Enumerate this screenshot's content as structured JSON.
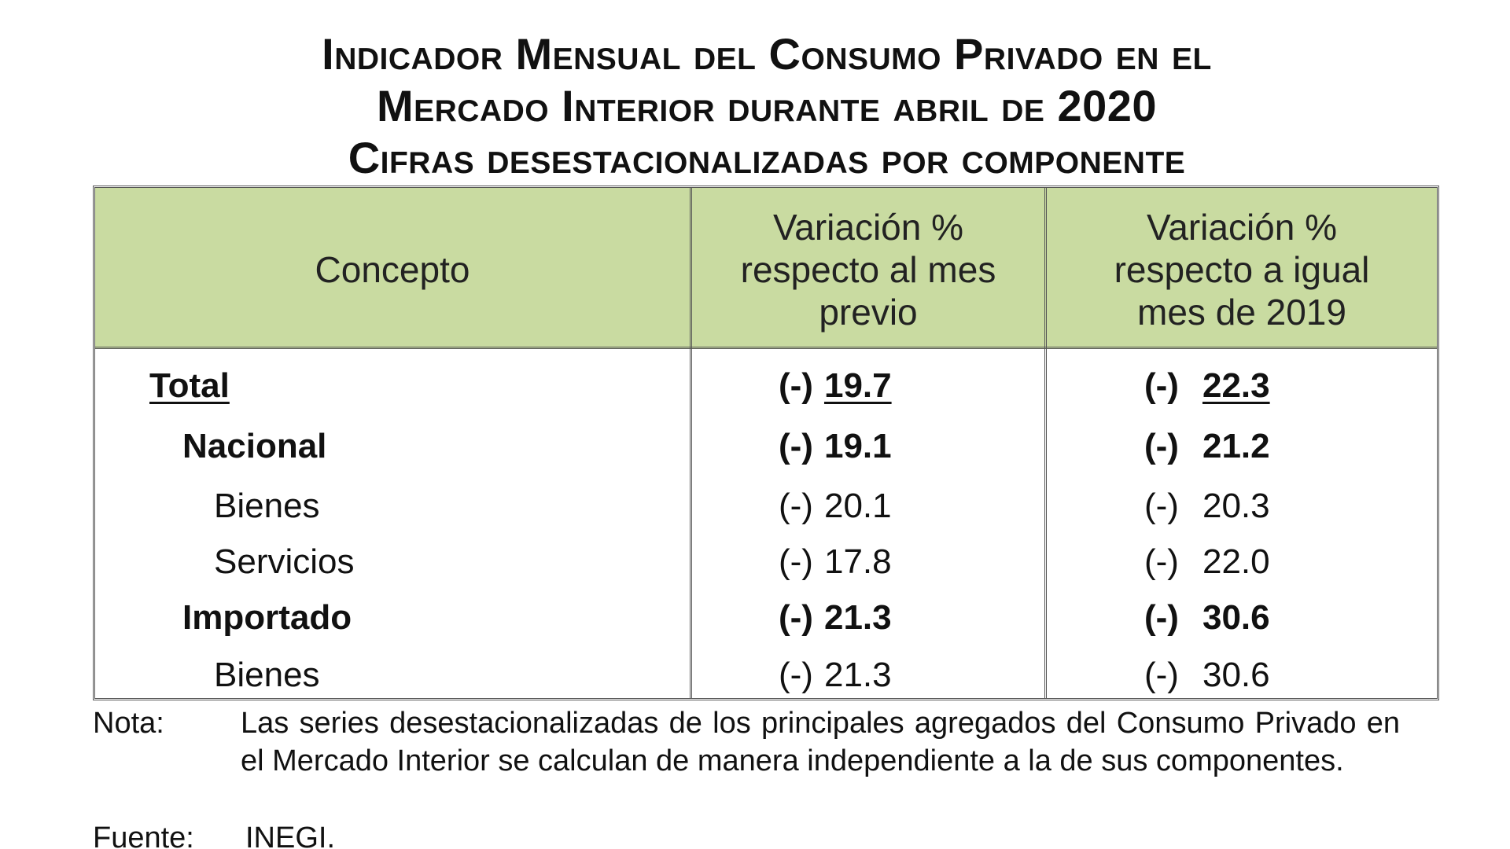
{
  "title": {
    "line1": "Indicador Mensual del Consumo Privado en el",
    "line2": "Mercado Interior durante abril de 2020",
    "line3": "Cifras desestacionalizadas por componente"
  },
  "table": {
    "headers": {
      "concepto": "Concepto",
      "col1": [
        "Variación %",
        "respecto al mes",
        "previo"
      ],
      "col2": [
        "Variación %",
        "respecto a igual",
        "mes de 2019"
      ]
    },
    "rows": [
      {
        "label": "Total",
        "sign1": "(-)",
        "v1": "19.7",
        "sign2": "(-)",
        "v2": "22.3"
      },
      {
        "label": "Nacional",
        "sign1": "(-)",
        "v1": "19.1",
        "sign2": "(-)",
        "v2": "21.2"
      },
      {
        "label": "Bienes",
        "sign1": "(-)",
        "v1": "20.1",
        "sign2": "(-)",
        "v2": "20.3"
      },
      {
        "label": "Servicios",
        "sign1": "(-)",
        "v1": "17.8",
        "sign2": "(-)",
        "v2": "22.0"
      },
      {
        "label": "Importado",
        "sign1": "(-)",
        "v1": "21.3",
        "sign2": "(-)",
        "v2": "30.6"
      },
      {
        "label": "Bienes",
        "sign1": "(-)",
        "v1": "21.3",
        "sign2": "(-)",
        "v2": "30.6"
      }
    ]
  },
  "note": {
    "label": "Nota:",
    "text": "Las series desestacionalizadas de los principales agregados del Consumo Privado en el Mercado Interior se calculan de manera independiente a la de sus componentes."
  },
  "source": {
    "label": "Fuente:",
    "text": "INEGI."
  },
  "colors": {
    "header_bg": "#c9dba1",
    "border": "#555555"
  }
}
